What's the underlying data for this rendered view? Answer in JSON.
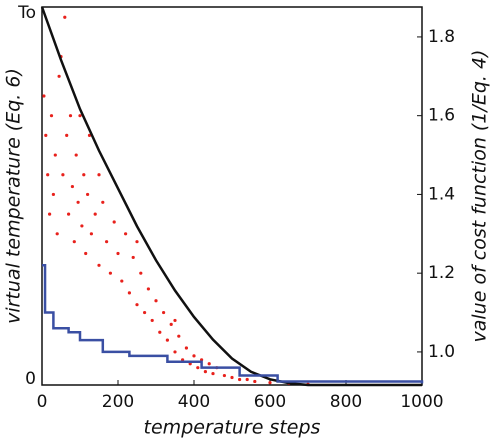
{
  "chart_data": {
    "type": "scatter",
    "xlabel": "temperature steps",
    "ylabel": "virtual temperature (Eq. 6)",
    "y2label": "value of cost function (1/Eq. 4)",
    "xlim": [
      0,
      1000
    ],
    "xticks": [
      0,
      200,
      400,
      600,
      800,
      1000
    ],
    "ylim": [
      0,
      1
    ],
    "yticks": [
      0,
      {
        "value": 1,
        "label": "To"
      }
    ],
    "y2lim": [
      0.916,
      1.876
    ],
    "y2ticks": [
      {
        "value": 1.0,
        "label": "1.0"
      },
      1.2,
      1.4,
      1.6,
      1.8
    ],
    "series": [
      {
        "type": "scatter",
        "axis": "y2",
        "color": "#e8211c",
        "x": [
          5,
          10,
          15,
          20,
          25,
          30,
          35,
          40,
          45,
          55,
          60,
          65,
          70,
          75,
          80,
          85,
          90,
          95,
          100,
          105,
          110,
          115,
          120,
          125,
          130,
          140,
          150,
          160,
          170,
          180,
          190,
          200,
          210,
          220,
          230,
          240,
          250,
          260,
          270,
          280,
          290,
          300,
          310,
          320,
          330,
          340,
          350,
          360,
          370,
          380,
          390,
          400,
          410,
          420,
          430,
          440,
          450,
          460,
          480,
          500,
          520,
          540,
          560,
          600,
          650,
          700,
          50,
          150,
          250,
          350
        ],
        "values": [
          1.65,
          1.55,
          1.45,
          1.35,
          1.6,
          1.4,
          1.5,
          1.3,
          1.7,
          1.45,
          1.85,
          1.55,
          1.35,
          1.6,
          1.42,
          1.28,
          1.5,
          1.38,
          1.6,
          1.32,
          1.45,
          1.25,
          1.4,
          1.55,
          1.3,
          1.35,
          1.22,
          1.38,
          1.28,
          1.2,
          1.33,
          1.25,
          1.18,
          1.3,
          1.15,
          1.24,
          1.12,
          1.2,
          1.1,
          1.16,
          1.08,
          1.13,
          1.05,
          1.1,
          1.03,
          1.07,
          1.0,
          1.04,
          0.98,
          1.01,
          0.97,
          0.99,
          0.96,
          0.98,
          0.95,
          0.97,
          0.945,
          0.96,
          0.94,
          0.935,
          0.93,
          0.93,
          0.925,
          0.922,
          0.92,
          0.918,
          1.75,
          1.45,
          1.28,
          1.08
        ]
      },
      {
        "type": "line",
        "axis": "y",
        "color": "#111111",
        "x": [
          0,
          50,
          100,
          150,
          200,
          250,
          300,
          350,
          400,
          450,
          500,
          550,
          600,
          650,
          700,
          1000
        ],
        "values": [
          1,
          0.86,
          0.73,
          0.62,
          0.52,
          0.42,
          0.33,
          0.25,
          0.18,
          0.12,
          0.07,
          0.035,
          0.015,
          0.005,
          0,
          0
        ]
      },
      {
        "type": "step",
        "axis": "y2",
        "color": "#3a4fa3",
        "x": [
          0,
          8,
          30,
          70,
          100,
          160,
          230,
          330,
          420,
          520,
          620,
          1000
        ],
        "values": [
          1.22,
          1.1,
          1.06,
          1.05,
          1.03,
          1.0,
          0.99,
          0.975,
          0.96,
          0.94,
          0.925,
          0.92
        ]
      }
    ]
  }
}
